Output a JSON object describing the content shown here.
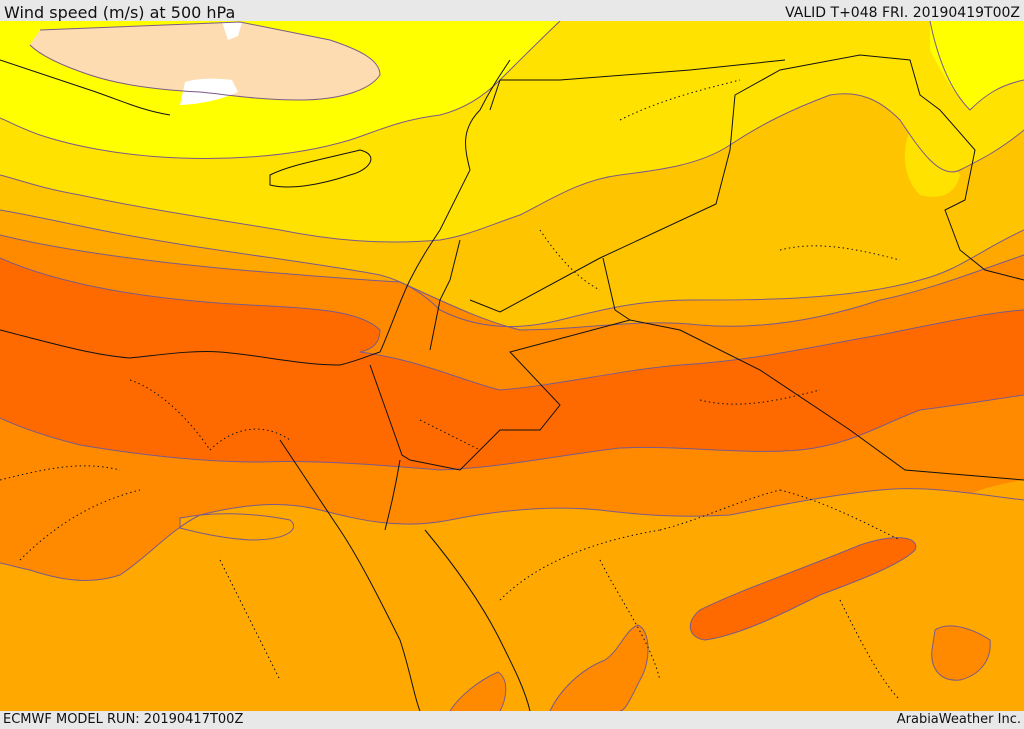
{
  "header": {
    "title": "Wind speed (m/s) at 500 hPa",
    "valid": "VALID T+048 FRI. 20190419T00Z"
  },
  "footer": {
    "model_run": "ECMWF MODEL RUN: 20190417T00Z",
    "credit": "ArabiaWeather Inc."
  },
  "map": {
    "colors": {
      "very_weak": "#ffffff",
      "weak": "#fcdcb0",
      "light": "#ffff00",
      "moderate_low": "#ffe200",
      "moderate": "#ffc400",
      "moderate_high": "#ffa800",
      "strong": "#ff8a00",
      "stronger": "#ff6a00",
      "contour": "#7a5a8a",
      "border": "#111111"
    }
  }
}
